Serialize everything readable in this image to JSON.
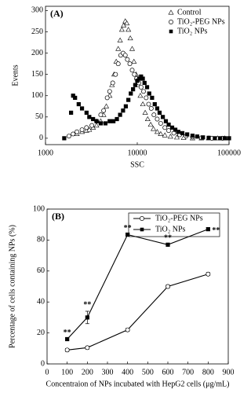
{
  "chart_data": [
    {
      "type": "scatter",
      "title": "(A)",
      "x_label": "SSC",
      "y_label": "Events",
      "xscale": "log",
      "xlim": [
        1000,
        100000
      ],
      "xticks": [
        1000,
        10000,
        100000
      ],
      "ylim": [
        -15,
        310
      ],
      "yticks": [
        0,
        50,
        100,
        150,
        200,
        250,
        300
      ],
      "legend": "upper right",
      "series": [
        {
          "name": "Control",
          "color": "#000000",
          "marker": "triangle-open",
          "x": [
            2200,
            2500,
            2800,
            3000,
            3300,
            3600,
            4000,
            4300,
            4600,
            5000,
            5300,
            5600,
            5900,
            6200,
            6500,
            6800,
            7100,
            7400,
            7700,
            8000,
            8400,
            8800,
            9200,
            9700,
            10200,
            10800,
            11500,
            12200,
            13000,
            14000,
            15000,
            16500,
            18000,
            20000,
            23000,
            27000,
            32000,
            40000,
            50000,
            60000,
            75000,
            90000
          ],
          "values": [
            10,
            15,
            18,
            20,
            25,
            30,
            40,
            55,
            75,
            100,
            125,
            150,
            180,
            210,
            230,
            255,
            265,
            275,
            270,
            255,
            235,
            210,
            180,
            150,
            125,
            100,
            80,
            60,
            45,
            32,
            22,
            15,
            10,
            7,
            4,
            2,
            1,
            0,
            0,
            0,
            0,
            0
          ]
        },
        {
          "name": "TiO₂-PEG NPs",
          "color": "#000000",
          "marker": "circle-open",
          "x": [
            1800,
            2000,
            2200,
            2500,
            2800,
            3200,
            3600,
            4000,
            4300,
            4700,
            5000,
            5400,
            5800,
            6200,
            6600,
            7000,
            7400,
            7800,
            8300,
            8800,
            9300,
            9800,
            10400,
            11000,
            11700,
            12500,
            13300,
            14200,
            15200,
            16500,
            18000,
            20000,
            22000,
            25000,
            29000,
            34000,
            40000,
            50000,
            65000,
            85000
          ],
          "values": [
            5,
            10,
            15,
            20,
            25,
            30,
            40,
            55,
            65,
            95,
            110,
            130,
            150,
            175,
            195,
            200,
            195,
            185,
            175,
            160,
            150,
            140,
            130,
            120,
            110,
            95,
            80,
            70,
            55,
            45,
            35,
            25,
            18,
            12,
            8,
            5,
            3,
            1,
            0,
            0
          ]
        },
        {
          "name": "TiO₂ NPs",
          "color": "#000000",
          "marker": "square-filled",
          "x": [
            1600,
            1900,
            2000,
            2100,
            2300,
            2500,
            2800,
            3000,
            3300,
            3600,
            4000,
            4500,
            5000,
            5500,
            6000,
            6500,
            7000,
            7500,
            8000,
            8500,
            9000,
            9500,
            10000,
            10500,
            11000,
            11500,
            12000,
            12800,
            13500,
            14500,
            15500,
            16500,
            17500,
            19000,
            20500,
            22000,
            24000,
            26000,
            28000,
            31000,
            35000,
            40000,
            45000,
            52000,
            60000,
            70000,
            80000,
            90000,
            100000
          ],
          "values": [
            0,
            60,
            100,
            95,
            80,
            70,
            60,
            50,
            45,
            40,
            35,
            35,
            40,
            40,
            45,
            55,
            65,
            75,
            90,
            105,
            115,
            125,
            135,
            140,
            145,
            140,
            130,
            120,
            105,
            95,
            80,
            70,
            60,
            50,
            40,
            32,
            25,
            20,
            15,
            12,
            9,
            6,
            4,
            2,
            1,
            0,
            0,
            0,
            0
          ]
        }
      ]
    },
    {
      "type": "line",
      "title": "(B)",
      "x_label": "Concentraion of NPs incubated with HepG2 cells (μg/mL)",
      "y_label": "Percentage of cells containing NPs (%)",
      "xlim": [
        0,
        900
      ],
      "xticks": [
        0,
        100,
        200,
        300,
        400,
        500,
        600,
        700,
        800,
        900
      ],
      "ylim": [
        0,
        100
      ],
      "yticks": [
        0,
        20,
        40,
        60,
        80,
        100
      ],
      "legend": "upper center",
      "x": [
        100,
        200,
        400,
        600,
        800
      ],
      "series": [
        {
          "name": "TiO₂-PEG NPs",
          "color": "#000000",
          "marker": "circle-open",
          "values": [
            9,
            10.5,
            22,
            50,
            58
          ],
          "errors": [
            1,
            1,
            1,
            1,
            1
          ]
        },
        {
          "name": "TiO₂ NPs",
          "color": "#000000",
          "marker": "square-filled",
          "values": [
            16,
            30,
            83.5,
            77,
            87
          ],
          "errors": [
            1,
            4,
            1,
            1,
            1
          ]
        }
      ],
      "annotations": [
        {
          "text": "**",
          "x": 100,
          "y": 16,
          "position": "above"
        },
        {
          "text": "**",
          "x": 200,
          "y": 34,
          "position": "above"
        },
        {
          "text": "**",
          "x": 400,
          "y": 83.5,
          "position": "above"
        },
        {
          "text": "**",
          "x": 600,
          "y": 77,
          "position": "above"
        },
        {
          "text": "**",
          "x": 800,
          "y": 87,
          "position": "right"
        }
      ]
    }
  ]
}
